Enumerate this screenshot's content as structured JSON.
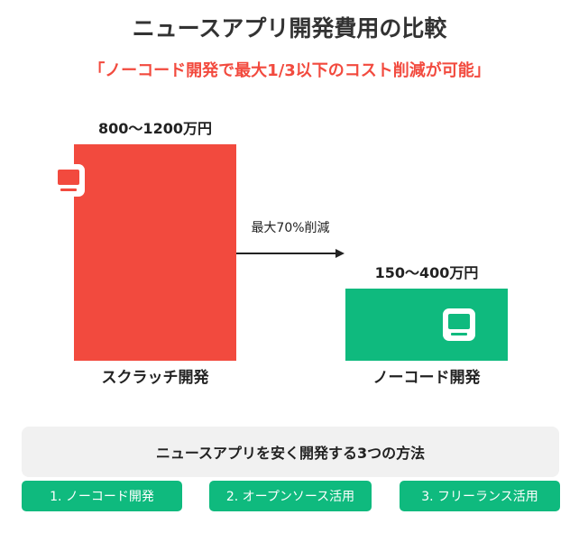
{
  "title": "ニュースアプリ開発費用の比較",
  "subtitle": "「ノーコード開発で最大1/3以下のコスト削減が可能」",
  "colors": {
    "scratch": "#f24a3e",
    "nocode": "#0fba7e",
    "title_text": "#333333",
    "subtitle_text": "#f24a3e",
    "method_bg": "#0fba7e",
    "panel_bg": "#f1f1f1"
  },
  "chart_data": {
    "type": "bar",
    "categories": [
      "スクラッチ開発",
      "ノーコード開発"
    ],
    "ranges": [
      [
        800,
        1200
      ],
      [
        150,
        400
      ]
    ],
    "value_labels": [
      "800〜1200万円",
      "150〜400万円"
    ],
    "ylim": [
      0,
      1200
    ],
    "bar_icons": [
      "monitor-icon",
      "monitor-icon"
    ],
    "annotation": "最大70%削減",
    "grid": false
  },
  "methods": {
    "heading": "ニュースアプリを安く開発する3つの方法",
    "items": [
      "1. ノーコード開発",
      "2. オープンソース活用",
      "3. フリーランス活用"
    ]
  }
}
